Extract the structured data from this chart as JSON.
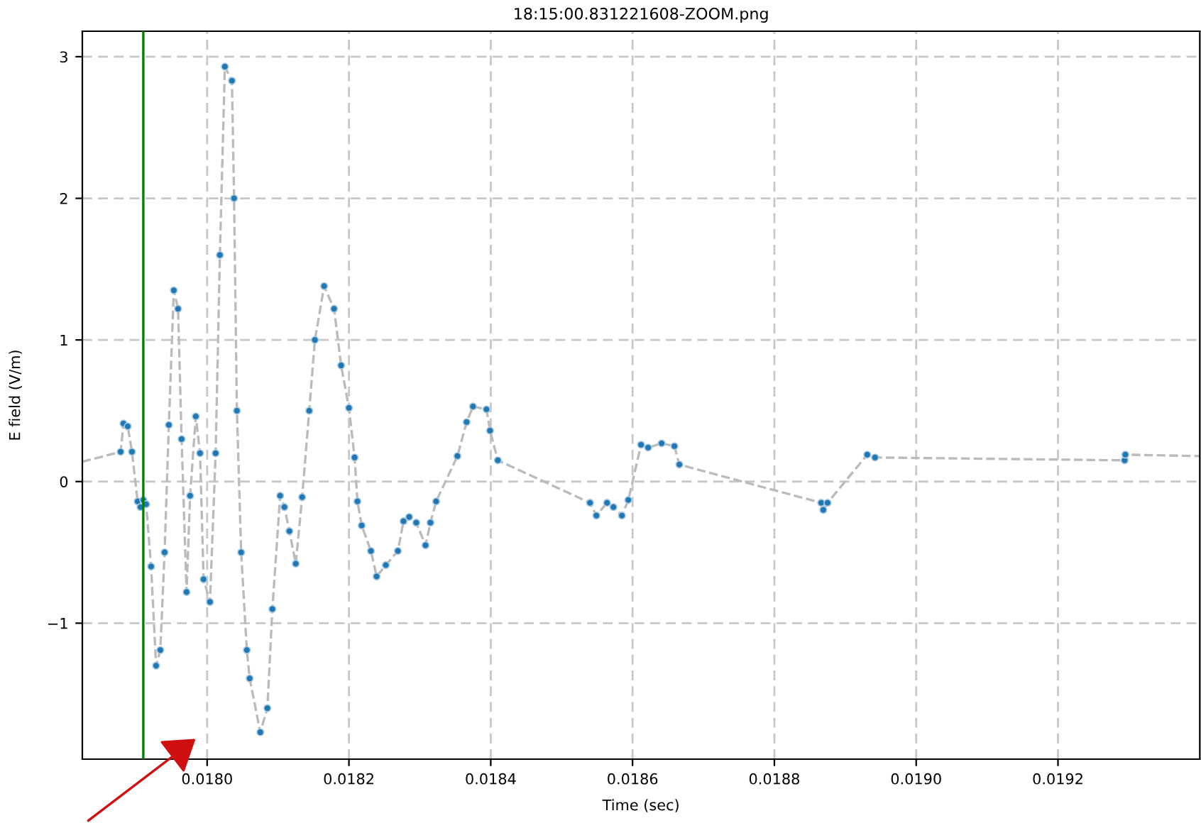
{
  "chart_data": {
    "type": "line",
    "title": "18:15:00.831221608-ZOOM.png",
    "xlabel": "Time (sec)",
    "ylabel": "E field (V/m)",
    "x": [
      0.017824,
      0.017878,
      0.017882,
      0.017888,
      0.017894,
      0.017902,
      0.017906,
      0.01791,
      0.017914,
      0.017921,
      0.017928,
      0.017934,
      0.01794,
      0.017946,
      0.017953,
      0.017959,
      0.017964,
      0.017971,
      0.017976,
      0.017984,
      0.01799,
      0.017995,
      0.018004,
      0.018012,
      0.018018,
      0.018025,
      0.018035,
      0.018038,
      0.018042,
      0.018048,
      0.018056,
      0.01806,
      0.018075,
      0.018085,
      0.018092,
      0.018103,
      0.018109,
      0.018116,
      0.018125,
      0.018134,
      0.018144,
      0.018152,
      0.018165,
      0.018179,
      0.018189,
      0.0182,
      0.018208,
      0.018212,
      0.018218,
      0.018231,
      0.018239,
      0.018252,
      0.018269,
      0.018277,
      0.018285,
      0.018295,
      0.018308,
      0.018315,
      0.018323,
      0.018353,
      0.018366,
      0.018375,
      0.018394,
      0.018399,
      0.01841,
      0.01854,
      0.018549,
      0.018564,
      0.018573,
      0.018585,
      0.018594,
      0.018612,
      0.018622,
      0.018641,
      0.018659,
      0.018666,
      0.018866,
      0.018869,
      0.018875,
      0.018931,
      0.018942,
      0.019294,
      0.019295,
      0.0194
    ],
    "series": [
      {
        "color": "#bbbbbb",
        "line_style": "dashed",
        "marker": "none",
        "values": [
          0.14,
          0.21,
          0.41,
          0.39,
          0.21,
          -0.14,
          -0.18,
          -0.13,
          -0.16,
          -0.6,
          -1.3,
          -1.19,
          -0.5,
          0.4,
          1.35,
          1.22,
          0.3,
          -0.78,
          -0.1,
          0.46,
          0.2,
          -0.69,
          -0.85,
          0.2,
          1.6,
          2.93,
          2.83,
          2.0,
          0.5,
          -0.5,
          -1.19,
          -1.39,
          -1.77,
          -1.6,
          -0.9,
          -0.1,
          -0.18,
          -0.35,
          -0.58,
          -0.11,
          0.5,
          1.0,
          1.38,
          1.22,
          0.82,
          0.52,
          0.17,
          -0.14,
          -0.31,
          -0.49,
          -0.67,
          -0.59,
          -0.49,
          -0.28,
          -0.25,
          -0.29,
          -0.45,
          -0.29,
          -0.14,
          0.18,
          0.42,
          0.53,
          0.51,
          0.36,
          0.15,
          -0.15,
          -0.24,
          -0.15,
          -0.18,
          -0.24,
          -0.13,
          0.26,
          0.24,
          0.27,
          0.25,
          0.12,
          -0.15,
          -0.2,
          -0.15,
          0.19,
          0.17,
          0.15,
          0.19,
          0.18
        ]
      },
      {
        "type": "scatter",
        "color": "#1f77b4",
        "marker": "circle",
        "values": [
          null,
          0.21,
          0.41,
          0.39,
          0.21,
          -0.14,
          -0.18,
          -0.13,
          -0.16,
          -0.6,
          -1.3,
          -1.19,
          -0.5,
          0.4,
          1.35,
          1.22,
          0.3,
          -0.78,
          -0.1,
          0.46,
          0.2,
          -0.69,
          -0.85,
          0.2,
          1.6,
          2.93,
          2.83,
          2.0,
          0.5,
          -0.5,
          -1.19,
          -1.39,
          -1.77,
          -1.6,
          -0.9,
          -0.1,
          -0.18,
          -0.35,
          -0.58,
          -0.11,
          0.5,
          1.0,
          1.38,
          1.22,
          0.82,
          0.52,
          0.17,
          -0.14,
          -0.31,
          -0.49,
          -0.67,
          -0.59,
          -0.49,
          -0.28,
          -0.25,
          -0.29,
          -0.45,
          -0.29,
          -0.14,
          0.18,
          0.42,
          0.53,
          0.51,
          0.36,
          0.15,
          -0.15,
          -0.24,
          -0.15,
          -0.18,
          -0.24,
          -0.13,
          0.26,
          0.24,
          0.27,
          0.25,
          0.12,
          -0.15,
          -0.2,
          -0.15,
          0.19,
          0.17,
          0.15,
          0.19,
          null
        ]
      }
    ],
    "xlim": [
      0.017824,
      0.0194
    ],
    "ylim": [
      -1.96,
      3.18
    ],
    "xticks": [
      {
        "value": 0.018,
        "label": "0.0180"
      },
      {
        "value": 0.0182,
        "label": "0.0182"
      },
      {
        "value": 0.0184,
        "label": "0.0184"
      },
      {
        "value": 0.0186,
        "label": "0.0186"
      },
      {
        "value": 0.0188,
        "label": "0.0188"
      },
      {
        "value": 0.019,
        "label": "0.0190"
      },
      {
        "value": 0.0192,
        "label": "0.0192"
      }
    ],
    "yticks": [
      {
        "value": -1,
        "label": "−1"
      },
      0,
      1,
      2,
      3
    ],
    "grid": true,
    "ref_lines": [
      {
        "axis": "x",
        "value": 0.01791,
        "color": "#008000",
        "line_style": "solid"
      }
    ]
  }
}
